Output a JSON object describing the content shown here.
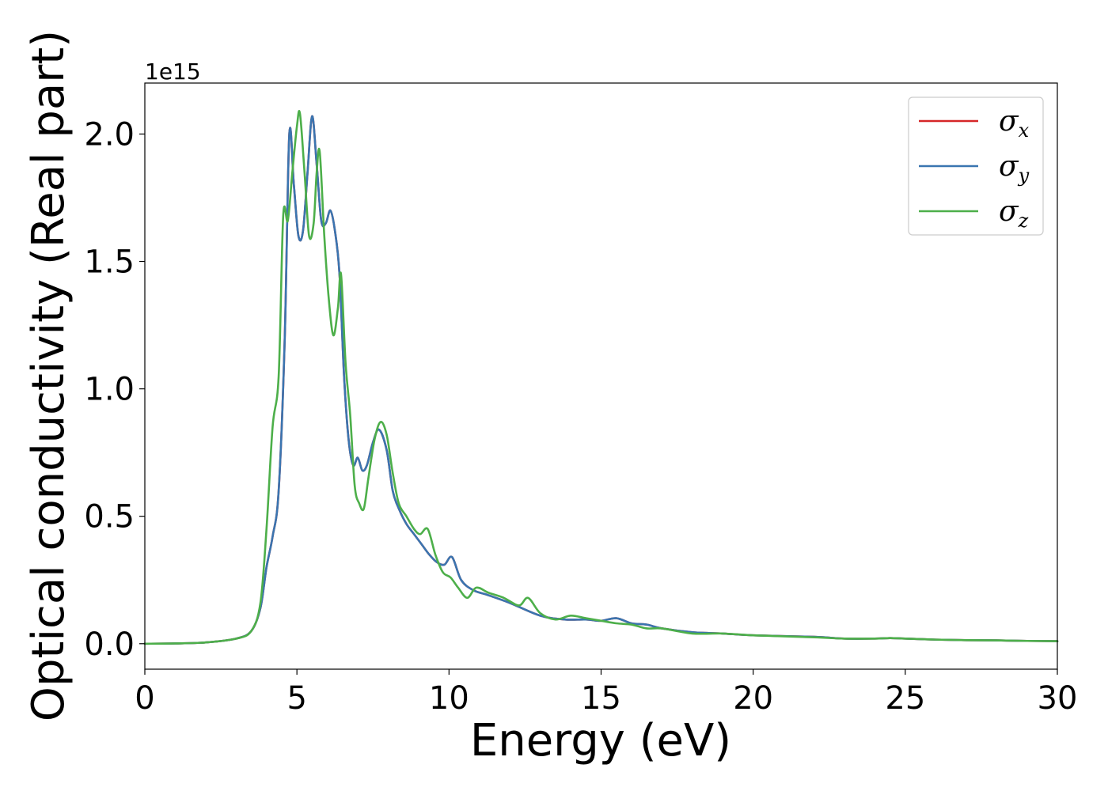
{
  "chart_data": {
    "type": "line",
    "title": "",
    "xlabel": "Energy (eV)",
    "ylabel": "Optical conductivity (Real part)",
    "y_offset_text": "1e15",
    "y_scale_factor": 1000000000000000.0,
    "xlim": [
      0,
      30
    ],
    "ylim": [
      -0.1,
      2.2
    ],
    "x_ticks": [
      0,
      5,
      10,
      15,
      20,
      25,
      30
    ],
    "x_tick_labels": [
      "0",
      "5",
      "10",
      "15",
      "20",
      "25",
      "30"
    ],
    "y_ticks": [
      0.0,
      0.5,
      1.0,
      1.5,
      2.0
    ],
    "y_tick_labels": [
      "0.0",
      "0.5",
      "1.0",
      "1.5",
      "2.0"
    ],
    "grid": false,
    "legend_position": "top-right",
    "series": [
      {
        "name": "σx",
        "legend_symbol": "σ",
        "legend_subscript": "x",
        "color": "#d62728",
        "x": [
          0,
          1,
          2,
          3,
          3.5,
          3.8,
          4.0,
          4.2,
          4.4,
          4.6,
          4.75,
          4.9,
          5.05,
          5.2,
          5.35,
          5.5,
          5.65,
          5.8,
          5.95,
          6.1,
          6.25,
          6.4,
          6.55,
          6.7,
          6.85,
          7.0,
          7.15,
          7.3,
          7.5,
          7.7,
          7.95,
          8.15,
          8.35,
          8.6,
          8.85,
          9.1,
          9.35,
          9.6,
          9.85,
          10.1,
          10.4,
          10.8,
          11.3,
          12.0,
          13.0,
          13.8,
          14.5,
          15.0,
          15.5,
          16.0,
          16.5,
          17.0,
          18.0,
          19.0,
          20.0,
          22.0,
          23.0,
          24.0,
          24.5,
          25.0,
          26.0,
          27.0,
          28.0,
          29.0,
          30.0
        ],
        "values": [
          0.0,
          0.001,
          0.005,
          0.02,
          0.05,
          0.14,
          0.3,
          0.42,
          0.6,
          1.2,
          2.0,
          1.8,
          1.6,
          1.62,
          1.85,
          2.07,
          1.88,
          1.66,
          1.65,
          1.7,
          1.62,
          1.45,
          1.05,
          0.8,
          0.7,
          0.73,
          0.68,
          0.7,
          0.79,
          0.84,
          0.76,
          0.6,
          0.53,
          0.47,
          0.43,
          0.39,
          0.35,
          0.32,
          0.31,
          0.34,
          0.25,
          0.21,
          0.19,
          0.16,
          0.11,
          0.095,
          0.095,
          0.09,
          0.1,
          0.08,
          0.075,
          0.06,
          0.045,
          0.04,
          0.033,
          0.027,
          0.02,
          0.02,
          0.022,
          0.02,
          0.016,
          0.014,
          0.013,
          0.011,
          0.01
        ]
      },
      {
        "name": "σy",
        "legend_symbol": "σ",
        "legend_subscript": "y",
        "color": "#3a75b0",
        "x": [
          0,
          1,
          2,
          3,
          3.5,
          3.8,
          4.0,
          4.2,
          4.4,
          4.6,
          4.75,
          4.9,
          5.05,
          5.2,
          5.35,
          5.5,
          5.65,
          5.8,
          5.95,
          6.1,
          6.25,
          6.4,
          6.55,
          6.7,
          6.85,
          7.0,
          7.15,
          7.3,
          7.5,
          7.7,
          7.95,
          8.15,
          8.35,
          8.6,
          8.85,
          9.1,
          9.35,
          9.6,
          9.85,
          10.1,
          10.4,
          10.8,
          11.3,
          12.0,
          13.0,
          13.8,
          14.5,
          15.0,
          15.5,
          16.0,
          16.5,
          17.0,
          18.0,
          19.0,
          20.0,
          22.0,
          23.0,
          24.0,
          24.5,
          25.0,
          26.0,
          27.0,
          28.0,
          29.0,
          30.0
        ],
        "values": [
          0.0,
          0.001,
          0.005,
          0.02,
          0.05,
          0.14,
          0.3,
          0.42,
          0.6,
          1.2,
          2.0,
          1.8,
          1.6,
          1.62,
          1.85,
          2.07,
          1.88,
          1.66,
          1.65,
          1.7,
          1.62,
          1.45,
          1.05,
          0.8,
          0.7,
          0.73,
          0.68,
          0.7,
          0.79,
          0.84,
          0.76,
          0.6,
          0.53,
          0.47,
          0.43,
          0.39,
          0.35,
          0.32,
          0.31,
          0.34,
          0.25,
          0.21,
          0.19,
          0.16,
          0.11,
          0.095,
          0.095,
          0.09,
          0.1,
          0.08,
          0.075,
          0.06,
          0.045,
          0.04,
          0.033,
          0.027,
          0.02,
          0.02,
          0.022,
          0.02,
          0.016,
          0.014,
          0.013,
          0.011,
          0.01
        ]
      },
      {
        "name": "σz",
        "legend_symbol": "σ",
        "legend_subscript": "z",
        "color": "#4daf4a",
        "x": [
          0,
          1,
          2,
          3,
          3.5,
          3.8,
          4.0,
          4.2,
          4.4,
          4.55,
          4.7,
          4.85,
          5.0,
          5.1,
          5.25,
          5.4,
          5.55,
          5.65,
          5.75,
          5.9,
          6.05,
          6.2,
          6.35,
          6.45,
          6.6,
          6.75,
          6.9,
          7.05,
          7.2,
          7.35,
          7.55,
          7.75,
          7.95,
          8.15,
          8.35,
          8.6,
          8.85,
          9.05,
          9.3,
          9.55,
          9.8,
          10.05,
          10.3,
          10.6,
          10.9,
          11.3,
          11.8,
          12.3,
          12.6,
          13.0,
          13.5,
          14.0,
          14.5,
          15.0,
          15.5,
          16.0,
          16.5,
          17.0,
          18.0,
          19.0,
          20.0,
          22.0,
          23.0,
          24.0,
          24.5,
          25.0,
          26.0,
          27.0,
          28.0,
          29.0,
          30.0
        ],
        "values": [
          0.0,
          0.001,
          0.005,
          0.02,
          0.05,
          0.16,
          0.45,
          0.85,
          1.05,
          1.68,
          1.66,
          1.85,
          2.03,
          2.08,
          1.85,
          1.6,
          1.65,
          1.85,
          1.93,
          1.6,
          1.35,
          1.21,
          1.32,
          1.45,
          1.1,
          0.9,
          0.62,
          0.55,
          0.53,
          0.65,
          0.8,
          0.87,
          0.82,
          0.67,
          0.55,
          0.5,
          0.45,
          0.43,
          0.45,
          0.35,
          0.28,
          0.26,
          0.22,
          0.18,
          0.22,
          0.2,
          0.18,
          0.15,
          0.18,
          0.12,
          0.095,
          0.11,
          0.1,
          0.09,
          0.08,
          0.075,
          0.06,
          0.06,
          0.04,
          0.04,
          0.033,
          0.025,
          0.02,
          0.02,
          0.022,
          0.02,
          0.016,
          0.014,
          0.013,
          0.011,
          0.01
        ]
      }
    ]
  }
}
